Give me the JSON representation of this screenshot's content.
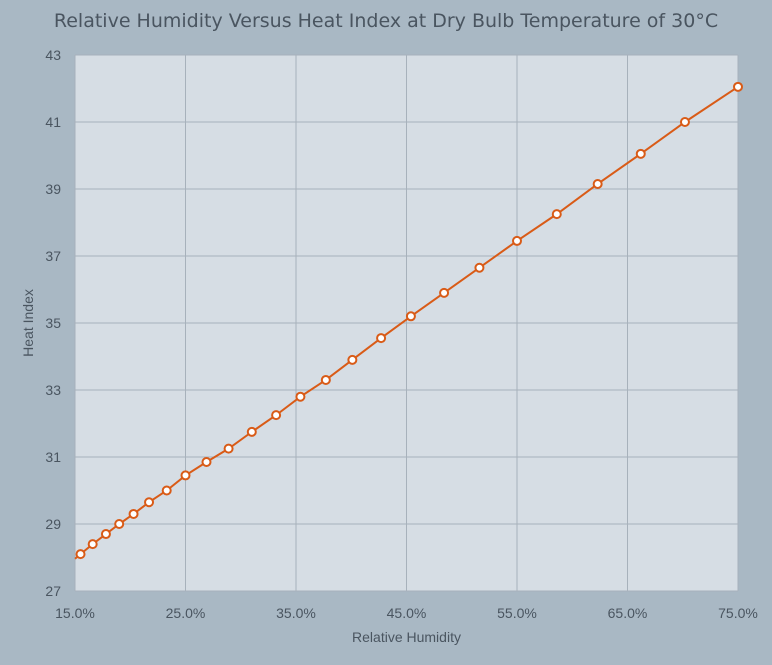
{
  "chart_data": {
    "type": "line",
    "title": "Relative Humidity Versus Heat Index at Dry Bulb Temperature of 30°C",
    "xlabel": "Relative Humidity",
    "ylabel": "Heat Index",
    "xlim": [
      0.15,
      0.75
    ],
    "ylim": [
      27,
      43
    ],
    "x_ticks": [
      "15.0%",
      "25.0%",
      "35.0%",
      "45.0%",
      "55.0%",
      "65.0%",
      "75.0%"
    ],
    "y_ticks": [
      "27",
      "29",
      "31",
      "33",
      "35",
      "37",
      "39",
      "41",
      "43"
    ],
    "grid": true,
    "legend": "none",
    "series": [
      {
        "color": "#d95b17",
        "x": [
          0.155,
          0.166,
          0.178,
          0.19,
          0.203,
          0.217,
          0.233,
          0.25,
          0.269,
          0.289,
          0.31,
          0.332,
          0.354,
          0.377,
          0.401,
          0.427,
          0.454,
          0.484,
          0.516,
          0.55,
          0.586,
          0.623,
          0.662,
          0.702,
          0.75
        ],
        "y": [
          28.1,
          28.4,
          28.7,
          29.0,
          29.3,
          29.65,
          30.0,
          30.45,
          30.85,
          31.25,
          31.75,
          32.25,
          32.8,
          33.3,
          33.9,
          34.55,
          35.2,
          35.9,
          36.65,
          37.45,
          38.25,
          39.15,
          40.05,
          41.0,
          42.05
        ]
      }
    ]
  }
}
